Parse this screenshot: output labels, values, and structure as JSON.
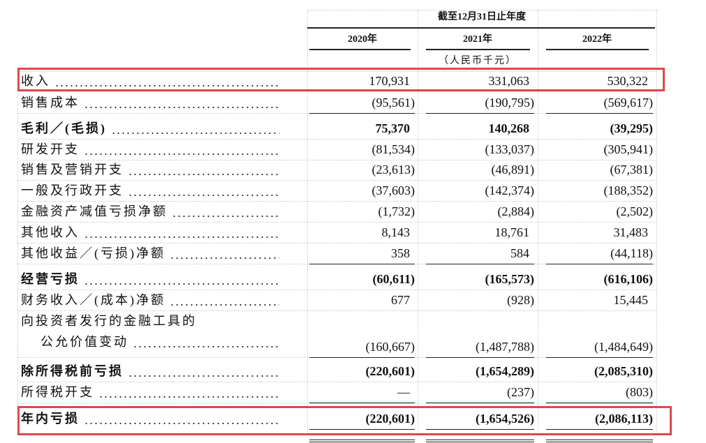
{
  "table": {
    "header": {
      "period": "截至12月31日止年度",
      "years": [
        "2020年",
        "2021年",
        "2022年"
      ],
      "unit": "（人民币千元）"
    },
    "rows": [
      {
        "label": [
          "收入"
        ],
        "values": [
          "170,931",
          "331,063",
          "530,322"
        ],
        "highlighted": true
      },
      {
        "label": [
          "销售成本"
        ],
        "values": [
          "(95,561)",
          "(190,795)",
          "(569,617)"
        ],
        "rule_below": "single"
      },
      {
        "label": [
          "毛利／(毛损)"
        ],
        "values": [
          "75,370",
          "140,268",
          "(39,295)"
        ],
        "bold": true
      },
      {
        "label": [
          "研发开支"
        ],
        "values": [
          "(81,534)",
          "(133,037)",
          "(305,941)"
        ]
      },
      {
        "label": [
          "销售及营销开支"
        ],
        "values": [
          "(23,613)",
          "(46,891)",
          "(67,381)"
        ]
      },
      {
        "label": [
          "一般及行政开支"
        ],
        "values": [
          "(37,603)",
          "(142,374)",
          "(188,352)"
        ]
      },
      {
        "label": [
          "金融资产减值亏损净额"
        ],
        "values": [
          "(1,732)",
          "(2,884)",
          "(2,502)"
        ]
      },
      {
        "label": [
          "其他收入"
        ],
        "values": [
          "8,143",
          "18,761",
          "31,483"
        ]
      },
      {
        "label": [
          "其他收益／(亏损)净额"
        ],
        "values": [
          "358",
          "584",
          "(44,118)"
        ],
        "rule_below": "single"
      },
      {
        "label": [
          "经营亏损"
        ],
        "values": [
          "(60,611)",
          "(165,573)",
          "(616,106)"
        ],
        "bold": true
      },
      {
        "label": [
          "财务收入／(成本)净额"
        ],
        "values": [
          "677",
          "(928)",
          "15,445"
        ]
      },
      {
        "label": [
          "向投资者发行的金融工具的",
          "公允价值变动"
        ],
        "values": [
          "(160,667)",
          "(1,487,788)",
          "(1,484,649)"
        ],
        "rule_below": "single"
      },
      {
        "label": [
          "除所得税前亏损"
        ],
        "values": [
          "(220,601)",
          "(1,654,289)",
          "(2,085,310)"
        ],
        "bold": true
      },
      {
        "label": [
          "所得税开支"
        ],
        "values": [
          "—",
          "(237)",
          "(803)"
        ],
        "rule_below": "single"
      },
      {
        "label": [
          "年内亏损"
        ],
        "values": [
          "(220,601)",
          "(1,654,526)",
          "(2,086,113)"
        ],
        "bold": true,
        "highlighted": true,
        "rule_below": "double"
      }
    ]
  }
}
